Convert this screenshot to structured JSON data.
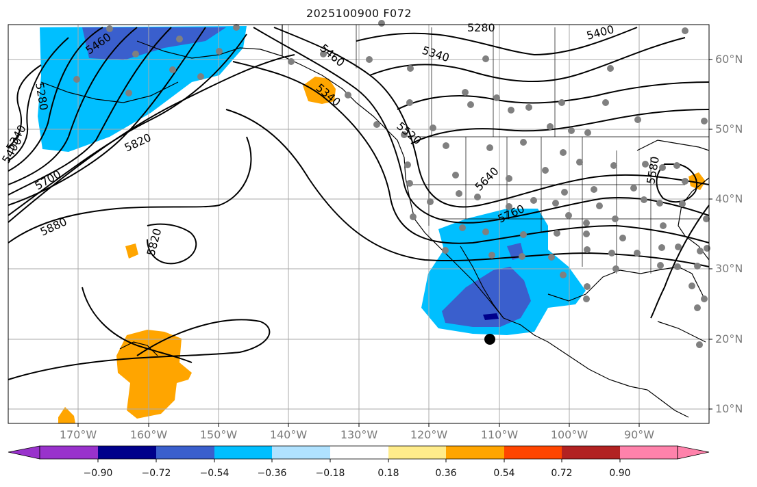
{
  "map": {
    "title": "2025100900 F072",
    "lat_labels": [
      "60°N",
      "50°N",
      "40°N",
      "30°N",
      "20°N",
      "10°N"
    ],
    "lon_labels": [
      "170°W",
      "160°W",
      "150°W",
      "140°W",
      "130°W",
      "120°W",
      "110°W",
      "100°W",
      "90°W"
    ],
    "contour_labels": [
      "5460",
      "5280",
      "5340",
      "5400",
      "5460",
      "5340",
      "5520",
      "5640",
      "5760",
      "5820",
      "5700",
      "5880",
      "5820",
      "5280",
      "5340",
      "5400",
      "5580"
    ],
    "colorbar": {
      "ticks": [
        "−0.90",
        "−0.72",
        "−0.54",
        "−0.36",
        "−0.18",
        "0.18",
        "0.36",
        "0.54",
        "0.72",
        "0.90"
      ],
      "colors": [
        "#9932CC",
        "#00008B",
        "#3A5FCD",
        "#00BFFF",
        "#B0E2FF",
        "#FFFFFF",
        "#FFEC8B",
        "#FFA500",
        "#FF4500",
        "#B22222",
        "#FF82AB"
      ]
    },
    "colors": {
      "land_outline": "#000000",
      "grid": "#a9a9a9",
      "contour": "#000000",
      "station_dot": "#808080"
    }
  }
}
